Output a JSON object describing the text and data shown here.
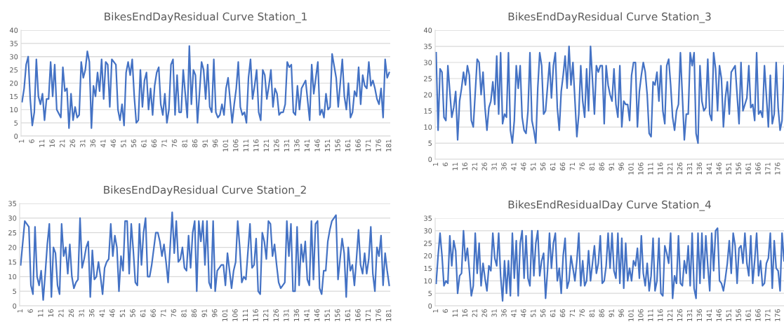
{
  "chart_data": [
    {
      "type": "line",
      "title": "BikesEndDayResidual Curve Station_1",
      "color": "#4472c4",
      "grid": "y",
      "xlim": [
        0.5,
        181.5
      ],
      "ylim": [
        0,
        40
      ],
      "yticks": [
        0,
        5,
        10,
        15,
        20,
        25,
        30,
        35,
        40
      ],
      "xticks": [
        1,
        6,
        11,
        16,
        21,
        26,
        31,
        36,
        41,
        46,
        51,
        56,
        61,
        66,
        71,
        76,
        81,
        86,
        91,
        96,
        101,
        106,
        111,
        116,
        121,
        126,
        131,
        136,
        141,
        146,
        151,
        156,
        161,
        166,
        171,
        176,
        181
      ],
      "x": [
        1,
        2,
        3,
        4,
        5,
        6,
        7,
        8,
        9,
        10,
        11,
        12,
        13,
        14,
        15,
        16,
        17,
        18,
        20,
        21,
        22,
        23,
        24,
        25,
        26,
        27,
        28,
        29,
        30,
        31,
        32,
        33,
        34,
        35,
        36,
        37,
        38,
        39,
        40,
        41,
        42,
        43,
        44,
        45,
        47,
        48,
        49,
        50,
        51,
        52,
        53,
        54,
        55,
        56,
        57,
        58,
        59,
        60,
        61,
        62,
        63,
        64,
        65,
        66,
        67,
        68,
        69,
        70,
        71,
        72,
        73,
        74,
        75,
        76,
        77,
        78,
        79,
        80,
        82,
        83,
        84,
        85,
        86,
        87,
        89,
        90,
        91,
        92,
        93,
        94,
        95,
        96,
        97,
        98,
        99,
        100,
        101,
        102,
        104,
        105,
        106,
        107,
        108,
        109,
        110,
        111,
        112,
        113,
        114,
        115,
        116,
        117,
        118,
        119,
        120,
        121,
        122,
        123,
        124,
        125,
        126,
        127,
        128,
        129,
        130,
        131,
        132,
        133,
        134,
        135,
        136,
        137,
        138,
        140,
        142,
        143,
        144,
        146,
        147,
        148,
        149,
        150,
        151,
        152,
        153,
        155,
        156,
        158,
        159,
        160,
        161,
        162,
        163,
        164,
        165,
        166,
        167,
        168,
        169,
        170,
        171,
        172,
        173,
        174,
        175,
        176,
        177,
        178,
        179,
        180,
        181
      ],
      "values": [
        13,
        18,
        27,
        30,
        14,
        4,
        9,
        29,
        15,
        12,
        16,
        6,
        14,
        14,
        28,
        15,
        27,
        10,
        7,
        26,
        17,
        18,
        3,
        16,
        6,
        11,
        7,
        8,
        28,
        22,
        25,
        32,
        28,
        3,
        19,
        15,
        24,
        17,
        29,
        14,
        28,
        27,
        11,
        29,
        27,
        10,
        6,
        12,
        4,
        24,
        28,
        23,
        29,
        15,
        5,
        6,
        25,
        11,
        21,
        24,
        10,
        18,
        8,
        19,
        24,
        26,
        12,
        8,
        16,
        5,
        10,
        27,
        29,
        8,
        23,
        9,
        9,
        25,
        7,
        34,
        12,
        25,
        23,
        5,
        28,
        25,
        14,
        27,
        11,
        9,
        29,
        9,
        7,
        8,
        12,
        8,
        18,
        22,
        5,
        12,
        18,
        28,
        11,
        8,
        9,
        5,
        22,
        29,
        14,
        19,
        25,
        9,
        6,
        25,
        23,
        14,
        19,
        25,
        11,
        18,
        16,
        8,
        9,
        9,
        12,
        28,
        26,
        27,
        9,
        8,
        19,
        10,
        18,
        21,
        6,
        27,
        16,
        28,
        8,
        10,
        7,
        16,
        10,
        11,
        31,
        22,
        11,
        29,
        15,
        10,
        20,
        7,
        9,
        17,
        15,
        26,
        12,
        23,
        19,
        18,
        28,
        19,
        21,
        18,
        14,
        12,
        18,
        7,
        29,
        22,
        24
      ]
    },
    {
      "type": "line",
      "title": "BikesEndDayResidual Curve Station_3",
      "color": "#4472c4",
      "grid": "y",
      "xlim": [
        0.5,
        179
      ],
      "ylim": [
        0,
        40
      ],
      "yticks": [
        0,
        5,
        10,
        15,
        20,
        25,
        30,
        35,
        40
      ],
      "xticks": [
        1,
        6,
        11,
        16,
        21,
        26,
        31,
        36,
        41,
        46,
        51,
        56,
        61,
        66,
        71,
        76,
        81,
        86,
        91,
        96,
        101,
        106,
        111,
        116,
        121,
        126,
        131,
        136,
        141,
        146,
        151,
        156,
        161,
        166,
        171,
        176
      ],
      "x": [
        1,
        2,
        3,
        4,
        5,
        6,
        7,
        9,
        10,
        11,
        12,
        13,
        14,
        15,
        16,
        17,
        18,
        19,
        20,
        22,
        23,
        24,
        25,
        26,
        27,
        28,
        29,
        30,
        31,
        32,
        33,
        34,
        35,
        36,
        37,
        38,
        39,
        40,
        41,
        42,
        43,
        44,
        45,
        46,
        47,
        48,
        49,
        50,
        51,
        52,
        53,
        54,
        55,
        56,
        57,
        59,
        60,
        61,
        62,
        63,
        64,
        65,
        66,
        67,
        68,
        69,
        70,
        71,
        73,
        74,
        75,
        76,
        77,
        78,
        79,
        80,
        82,
        83,
        84,
        85,
        86,
        87,
        88,
        89,
        90,
        91,
        92,
        93,
        94,
        95,
        96,
        97,
        98,
        99,
        100,
        101,
        102,
        103,
        104,
        105,
        106,
        107,
        108,
        109,
        110,
        111,
        112,
        113,
        114,
        115,
        116,
        117,
        118,
        119,
        120,
        121,
        122,
        123,
        124,
        125,
        126,
        128,
        129,
        130,
        131,
        132,
        133,
        134,
        135,
        136,
        137,
        138,
        139,
        140,
        141,
        142,
        143,
        144,
        145,
        146,
        147,
        148,
        149,
        150,
        151,
        152,
        154,
        156,
        157,
        158,
        160,
        161,
        162,
        163,
        164,
        165,
        166,
        167,
        168,
        169,
        171,
        172,
        173,
        174,
        175,
        176,
        177,
        178,
        179
      ],
      "values": [
        33,
        9,
        28,
        27,
        13,
        12,
        29,
        13,
        16,
        21,
        6,
        18,
        22,
        27,
        23,
        29,
        26,
        12,
        10,
        31,
        30,
        20,
        27,
        16,
        9,
        16,
        18,
        24,
        17,
        32,
        14,
        33,
        11,
        14,
        13,
        33,
        9,
        5,
        12,
        29,
        22,
        29,
        13,
        9,
        8,
        15,
        33,
        12,
        9,
        5,
        22,
        33,
        29,
        14,
        15,
        30,
        19,
        29,
        33,
        16,
        9,
        21,
        26,
        32,
        22,
        35,
        23,
        30,
        7,
        14,
        29,
        18,
        13,
        28,
        15,
        35,
        14,
        29,
        27,
        29,
        29,
        11,
        29,
        23,
        20,
        18,
        28,
        17,
        13,
        29,
        10,
        18,
        17,
        17,
        12,
        26,
        30,
        30,
        10,
        21,
        26,
        30,
        27,
        20,
        8,
        7,
        24,
        23,
        27,
        18,
        29,
        15,
        11,
        29,
        31,
        23,
        13,
        9,
        15,
        17,
        33,
        6,
        14,
        14,
        33,
        29,
        33,
        8,
        5,
        29,
        18,
        15,
        16,
        31,
        14,
        12,
        33,
        28,
        15,
        29,
        25,
        10,
        19,
        24,
        14,
        27,
        29,
        11,
        30,
        15,
        19,
        29,
        16,
        17,
        12,
        33,
        14,
        15,
        13,
        29,
        10,
        26,
        11,
        14,
        30,
        16,
        9,
        12,
        29
      ]
    },
    {
      "type": "line",
      "title": "BikesEndDayResidual Curve Station_2",
      "color": "#4472c4",
      "grid": "y",
      "xlim": [
        0.5,
        181.5
      ],
      "ylim": [
        0,
        35
      ],
      "yticks": [
        0,
        5,
        10,
        15,
        20,
        25,
        30,
        35
      ],
      "xticks": [
        1,
        6,
        11,
        16,
        21,
        26,
        31,
        36,
        41,
        46,
        51,
        56,
        61,
        66,
        71,
        76,
        81,
        86,
        91,
        96,
        101,
        106,
        111,
        116,
        121,
        126,
        131,
        136,
        141,
        146,
        151,
        156,
        161,
        166,
        171,
        176,
        181
      ],
      "x": [
        1,
        3,
        5,
        6,
        7,
        8,
        9,
        10,
        11,
        12,
        13,
        14,
        15,
        16,
        17,
        18,
        19,
        20,
        21,
        22,
        23,
        24,
        25,
        26,
        27,
        28,
        29,
        30,
        31,
        32,
        33,
        34,
        35,
        36,
        37,
        38,
        39,
        40,
        41,
        42,
        43,
        44,
        45,
        46,
        47,
        48,
        49,
        50,
        51,
        52,
        53,
        54,
        55,
        56,
        57,
        58,
        59,
        60,
        61,
        62,
        63,
        64,
        65,
        67,
        68,
        69,
        70,
        71,
        72,
        73,
        75,
        76,
        77,
        78,
        79,
        80,
        81,
        82,
        83,
        84,
        85,
        86,
        87,
        88,
        89,
        90,
        91,
        92,
        93,
        94,
        95,
        96,
        97,
        98,
        99,
        100,
        101,
        102,
        103,
        104,
        105,
        106,
        107,
        108,
        109,
        110,
        111,
        113,
        114,
        115,
        116,
        117,
        118,
        119,
        120,
        121,
        122,
        123,
        124,
        125,
        126,
        127,
        128,
        129,
        130,
        131,
        132,
        133,
        134,
        135,
        136,
        137,
        138,
        139,
        140,
        141,
        142,
        143,
        144,
        145,
        146,
        147,
        148,
        149,
        150,
        151,
        152,
        153,
        154,
        155,
        156,
        157,
        158,
        159,
        160,
        161,
        162,
        163,
        164,
        165,
        166,
        167,
        168,
        169,
        170,
        171,
        172,
        173,
        174,
        175,
        176,
        177,
        178,
        179,
        180,
        181
      ],
      "values": [
        14,
        29,
        27,
        7,
        4,
        27,
        10,
        7,
        12,
        2,
        11,
        21,
        28,
        3,
        20,
        18,
        7,
        4,
        28,
        17,
        20,
        11,
        21,
        10,
        6,
        8,
        9,
        30,
        13,
        16,
        20,
        22,
        3,
        19,
        9,
        10,
        15,
        10,
        4,
        13,
        15,
        16,
        28,
        17,
        24,
        20,
        5,
        17,
        12,
        29,
        29,
        11,
        28,
        19,
        8,
        7,
        28,
        14,
        25,
        30,
        10,
        10,
        14,
        25,
        25,
        22,
        17,
        21,
        15,
        8,
        32,
        18,
        29,
        15,
        16,
        20,
        13,
        12,
        24,
        13,
        25,
        29,
        5,
        29,
        22,
        29,
        14,
        29,
        8,
        6,
        29,
        5,
        12,
        13,
        14,
        14,
        7,
        18,
        12,
        6,
        12,
        15,
        29,
        20,
        8,
        10,
        9,
        28,
        13,
        14,
        23,
        5,
        4,
        25,
        22,
        16,
        29,
        28,
        17,
        21,
        14,
        8,
        6,
        7,
        8,
        29,
        17,
        28,
        5,
        5,
        27,
        7,
        21,
        15,
        22,
        9,
        7,
        29,
        9,
        28,
        29,
        6,
        4,
        12,
        12,
        22,
        26,
        29,
        30,
        31,
        9,
        16,
        23,
        18,
        3,
        20,
        12,
        14,
        7,
        16,
        26,
        14,
        11,
        18,
        11,
        16,
        27,
        11,
        5,
        20,
        17,
        24,
        7,
        18,
        12,
        7
      ]
    },
    {
      "type": "line",
      "title": "BikesEndResidualDay Curve Station_4",
      "color": "#4472c4",
      "grid": "y",
      "xlim": [
        0.5,
        179
      ],
      "ylim": [
        0,
        35
      ],
      "yticks": [
        0,
        5,
        10,
        15,
        20,
        25,
        30,
        35
      ],
      "xticks": [
        1,
        6,
        11,
        16,
        21,
        26,
        31,
        36,
        41,
        46,
        51,
        56,
        61,
        66,
        71,
        76,
        81,
        86,
        91,
        96,
        101,
        106,
        111,
        116,
        121,
        126,
        131,
        136,
        141,
        146,
        151,
        156,
        161,
        166,
        171,
        176
      ],
      "x": [
        1,
        2,
        3,
        4,
        5,
        6,
        7,
        8,
        9,
        10,
        11,
        12,
        13,
        14,
        15,
        16,
        17,
        18,
        19,
        20,
        21,
        22,
        23,
        24,
        25,
        26,
        27,
        28,
        29,
        30,
        31,
        32,
        33,
        34,
        35,
        36,
        37,
        38,
        39,
        40,
        41,
        42,
        43,
        44,
        45,
        46,
        47,
        48,
        49,
        50,
        51,
        52,
        53,
        54,
        55,
        56,
        57,
        58,
        59,
        60,
        61,
        62,
        63,
        64,
        65,
        66,
        67,
        68,
        69,
        70,
        71,
        72,
        73,
        74,
        75,
        76,
        77,
        78,
        79,
        80,
        81,
        82,
        83,
        84,
        85,
        86,
        87,
        88,
        89,
        90,
        91,
        92,
        93,
        94,
        95,
        96,
        97,
        98,
        99,
        100,
        101,
        102,
        103,
        104,
        105,
        106,
        107,
        108,
        109,
        110,
        111,
        112,
        113,
        114,
        115,
        116,
        117,
        118,
        119,
        120,
        121,
        122,
        123,
        124,
        125,
        126,
        127,
        128,
        129,
        130,
        131,
        132,
        133,
        134,
        135,
        136,
        137,
        138,
        139,
        140,
        141,
        142,
        143,
        144,
        145,
        146,
        147,
        148,
        149,
        150,
        151,
        152,
        153,
        154,
        155,
        156,
        157,
        158,
        159,
        160,
        161,
        162,
        163,
        164,
        165,
        166,
        167,
        168,
        169,
        170,
        171,
        172,
        173,
        174,
        175,
        176,
        177,
        178,
        179
      ],
      "values": [
        9,
        20,
        29,
        20,
        8,
        10,
        9,
        28,
        16,
        26,
        22,
        5,
        12,
        13,
        30,
        18,
        23,
        14,
        4,
        8,
        29,
        13,
        25,
        8,
        17,
        11,
        6,
        16,
        14,
        29,
        19,
        16,
        29,
        12,
        2,
        18,
        5,
        18,
        4,
        29,
        11,
        26,
        4,
        25,
        30,
        11,
        28,
        11,
        8,
        30,
        12,
        25,
        30,
        12,
        18,
        21,
        3,
        14,
        29,
        15,
        25,
        29,
        10,
        15,
        5,
        20,
        27,
        7,
        10,
        20,
        15,
        10,
        18,
        29,
        8,
        18,
        8,
        10,
        22,
        10,
        17,
        24,
        13,
        17,
        28,
        9,
        10,
        16,
        29,
        15,
        29,
        14,
        11,
        29,
        9,
        27,
        7,
        25,
        10,
        15,
        10,
        18,
        16,
        23,
        11,
        28,
        13,
        8,
        17,
        6,
        12,
        27,
        6,
        10,
        27,
        5,
        4,
        24,
        21,
        17,
        29,
        3,
        12,
        9,
        28,
        9,
        8,
        18,
        13,
        24,
        8,
        29,
        7,
        3,
        29,
        9,
        29,
        11,
        28,
        16,
        6,
        29,
        14,
        30,
        31,
        10,
        9,
        6,
        11,
        17,
        26,
        13,
        29,
        24,
        9,
        23,
        24,
        17,
        29,
        17,
        12,
        28,
        9,
        18,
        29,
        12,
        18,
        8,
        9,
        17,
        19,
        29,
        7,
        26,
        15,
        14,
        6,
        29,
        18
      ]
    }
  ]
}
